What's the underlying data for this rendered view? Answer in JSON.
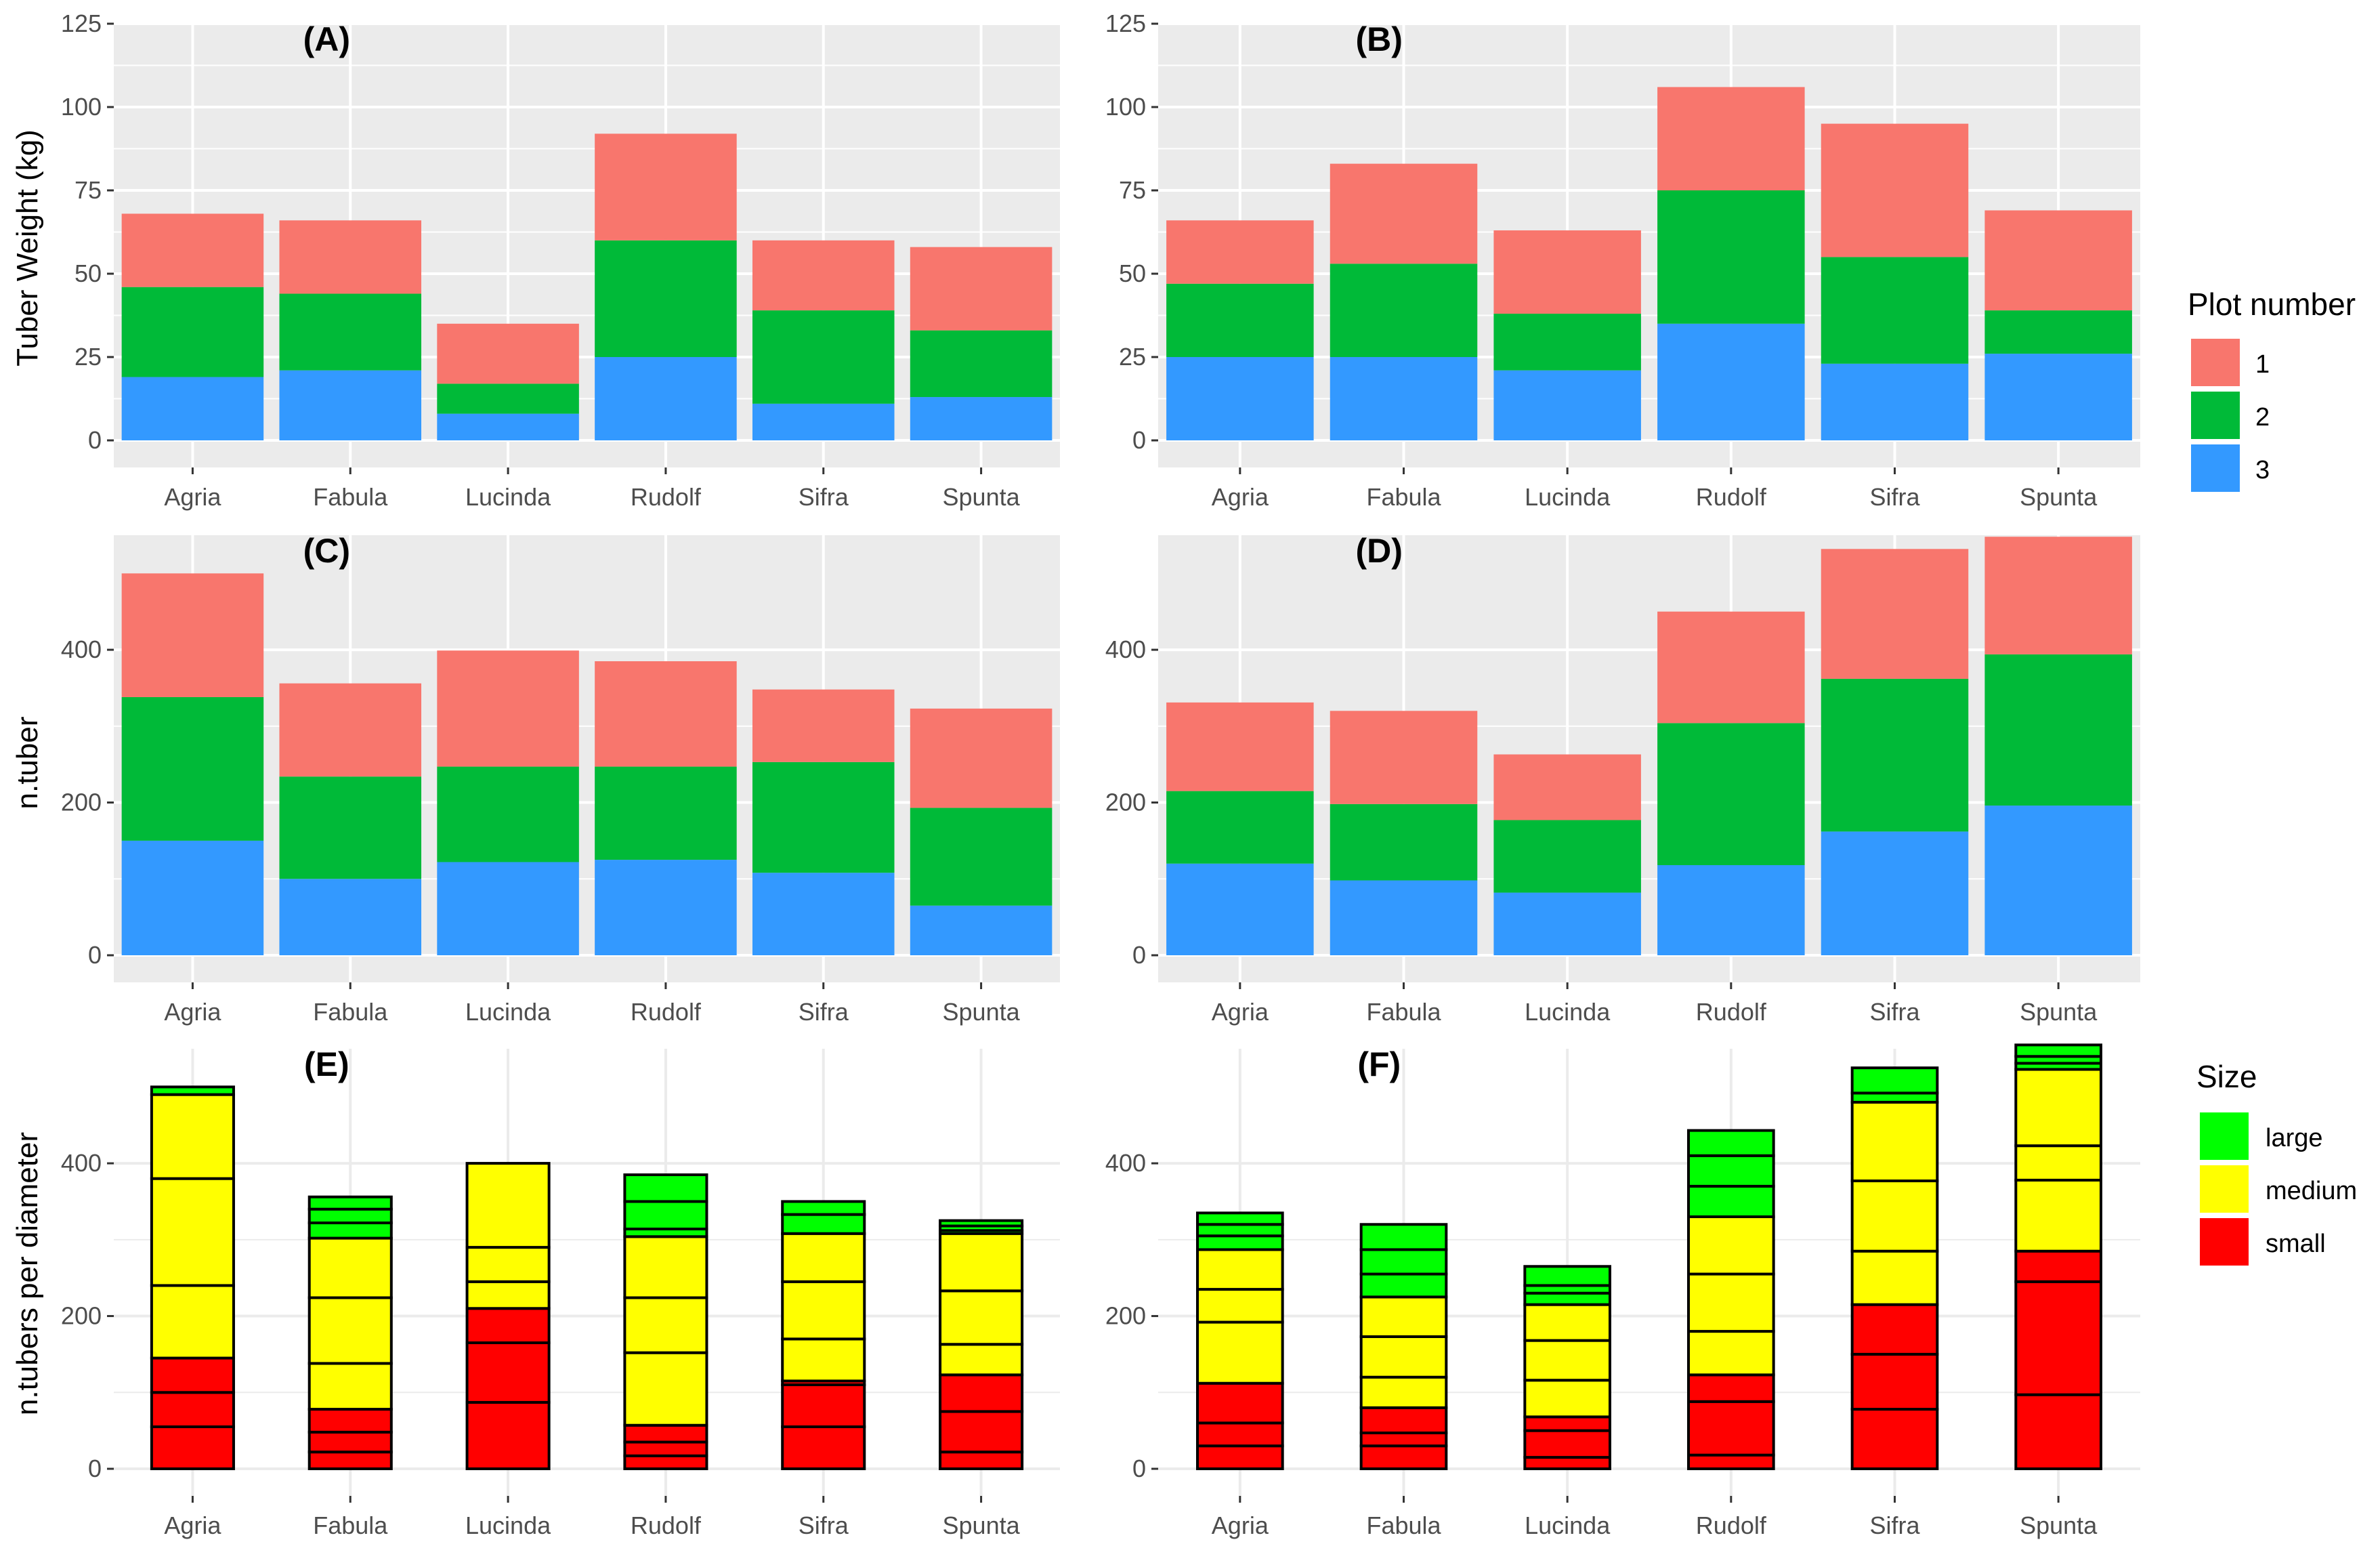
{
  "colors": {
    "panel_bg": "#EBEBEB",
    "grid": "#FFFFFF",
    "plot1": "#F8766D",
    "plot2": "#00BA38",
    "plot3": "#3399FF",
    "large": "#00FF00",
    "medium": "#FFFF00",
    "small": "#FF0000",
    "outline": "#000000"
  },
  "y_titles": {
    "row1": "Tuber Weight (kg)",
    "row2": "n.tuber",
    "row3": "n.tubers per diameter"
  },
  "legend_plot": {
    "title": "Plot number",
    "items": [
      {
        "label": "1",
        "color": "#F8766D"
      },
      {
        "label": "2",
        "color": "#00BA38"
      },
      {
        "label": "3",
        "color": "#3399FF"
      }
    ]
  },
  "legend_size": {
    "title": "Size",
    "items": [
      {
        "label": "large",
        "color": "#00FF00"
      },
      {
        "label": "medium",
        "color": "#FFFF00"
      },
      {
        "label": "small",
        "color": "#FF0000"
      }
    ]
  },
  "chart_data": [
    {
      "panel": "(A)",
      "type": "bar",
      "stacked": true,
      "categories": [
        "Agria",
        "Fabula",
        "Lucinda",
        "Rudolf",
        "Sifra",
        "Spunta"
      ],
      "ylabel": "Tuber Weight (kg)",
      "ylim": [
        0,
        125
      ],
      "yticks": [
        0,
        25,
        50,
        75,
        100,
        125
      ],
      "series": [
        {
          "name": "3",
          "values": [
            19,
            21,
            8,
            25,
            11,
            13
          ]
        },
        {
          "name": "2",
          "values": [
            27,
            23,
            9,
            35,
            28,
            20
          ]
        },
        {
          "name": "1",
          "values": [
            22,
            22,
            18,
            32,
            21,
            25
          ]
        }
      ]
    },
    {
      "panel": "(B)",
      "type": "bar",
      "stacked": true,
      "categories": [
        "Agria",
        "Fabula",
        "Lucinda",
        "Rudolf",
        "Sifra",
        "Spunta"
      ],
      "ylim": [
        0,
        125
      ],
      "yticks": [
        0,
        25,
        50,
        75,
        100,
        125
      ],
      "series": [
        {
          "name": "3",
          "values": [
            25,
            25,
            21,
            35,
            23,
            26
          ]
        },
        {
          "name": "2",
          "values": [
            22,
            28,
            17,
            40,
            32,
            13
          ]
        },
        {
          "name": "1",
          "values": [
            19,
            30,
            25,
            31,
            40,
            30
          ]
        }
      ]
    },
    {
      "panel": "(C)",
      "type": "bar",
      "stacked": true,
      "categories": [
        "Agria",
        "Fabula",
        "Lucinda",
        "Rudolf",
        "Sifra",
        "Spunta"
      ],
      "ylabel": "n.tuber",
      "ylim": [
        0,
        550
      ],
      "yticks": [
        0,
        200,
        400
      ],
      "series": [
        {
          "name": "3",
          "values": [
            150,
            100,
            122,
            125,
            108,
            65
          ]
        },
        {
          "name": "2",
          "values": [
            188,
            134,
            125,
            122,
            145,
            128
          ]
        },
        {
          "name": "1",
          "values": [
            162,
            122,
            152,
            138,
            95,
            130
          ]
        }
      ]
    },
    {
      "panel": "(D)",
      "type": "bar",
      "stacked": true,
      "categories": [
        "Agria",
        "Fabula",
        "Lucinda",
        "Rudolf",
        "Sifra",
        "Spunta"
      ],
      "ylim": [
        0,
        550
      ],
      "yticks": [
        0,
        200,
        400
      ],
      "series": [
        {
          "name": "3",
          "values": [
            120,
            98,
            82,
            118,
            162,
            196
          ]
        },
        {
          "name": "2",
          "values": [
            95,
            100,
            95,
            186,
            200,
            198
          ]
        },
        {
          "name": "1",
          "values": [
            116,
            122,
            86,
            146,
            170,
            154
          ]
        }
      ]
    },
    {
      "panel": "(E)",
      "type": "bar",
      "stacked": true,
      "categories": [
        "Agria",
        "Fabula",
        "Lucinda",
        "Rudolf",
        "Sifra",
        "Spunta"
      ],
      "ylabel": "n.tubers per diameter",
      "ylim": [
        0,
        550
      ],
      "yticks": [
        0,
        200,
        400
      ],
      "bars": [
        {
          "category": "Agria",
          "segments": [
            {
              "size": "small",
              "value": 55
            },
            {
              "size": "small",
              "value": 45
            },
            {
              "size": "small",
              "value": 45
            },
            {
              "size": "medium",
              "value": 95
            },
            {
              "size": "medium",
              "value": 140
            },
            {
              "size": "medium",
              "value": 110
            },
            {
              "size": "large",
              "value": 10
            }
          ]
        },
        {
          "category": "Fabula",
          "segments": [
            {
              "size": "small",
              "value": 22
            },
            {
              "size": "small",
              "value": 26
            },
            {
              "size": "small",
              "value": 30
            },
            {
              "size": "medium",
              "value": 60
            },
            {
              "size": "medium",
              "value": 86
            },
            {
              "size": "medium",
              "value": 78
            },
            {
              "size": "large",
              "value": 20
            },
            {
              "size": "large",
              "value": 18
            },
            {
              "size": "large",
              "value": 16
            }
          ]
        },
        {
          "category": "Lucinda",
          "segments": [
            {
              "size": "small",
              "value": 87
            },
            {
              "size": "small",
              "value": 78
            },
            {
              "size": "small",
              "value": 45
            },
            {
              "size": "medium",
              "value": 35
            },
            {
              "size": "medium",
              "value": 45
            },
            {
              "size": "medium",
              "value": 110
            }
          ]
        },
        {
          "category": "Rudolf",
          "segments": [
            {
              "size": "small",
              "value": 17
            },
            {
              "size": "small",
              "value": 18
            },
            {
              "size": "small",
              "value": 22
            },
            {
              "size": "medium",
              "value": 95
            },
            {
              "size": "medium",
              "value": 72
            },
            {
              "size": "medium",
              "value": 80
            },
            {
              "size": "large",
              "value": 10
            },
            {
              "size": "large",
              "value": 36
            },
            {
              "size": "large",
              "value": 35
            }
          ]
        },
        {
          "category": "Sifra",
          "segments": [
            {
              "size": "small",
              "value": 55
            },
            {
              "size": "small",
              "value": 55
            },
            {
              "size": "small",
              "value": 5
            },
            {
              "size": "medium",
              "value": 55
            },
            {
              "size": "medium",
              "value": 75
            },
            {
              "size": "medium",
              "value": 63
            },
            {
              "size": "large",
              "value": 25
            },
            {
              "size": "large",
              "value": 17
            }
          ]
        },
        {
          "category": "Spunta",
          "segments": [
            {
              "size": "small",
              "value": 22
            },
            {
              "size": "small",
              "value": 53
            },
            {
              "size": "small",
              "value": 48
            },
            {
              "size": "medium",
              "value": 40
            },
            {
              "size": "medium",
              "value": 70
            },
            {
              "size": "medium",
              "value": 75
            },
            {
              "size": "large",
              "value": 4
            },
            {
              "size": "large",
              "value": 6
            },
            {
              "size": "large",
              "value": 7
            }
          ]
        }
      ]
    },
    {
      "panel": "(F)",
      "type": "bar",
      "stacked": true,
      "categories": [
        "Agria",
        "Fabula",
        "Lucinda",
        "Rudolf",
        "Sifra",
        "Spunta"
      ],
      "ylim": [
        0,
        550
      ],
      "yticks": [
        0,
        200,
        400
      ],
      "bars": [
        {
          "category": "Agria",
          "segments": [
            {
              "size": "small",
              "value": 30
            },
            {
              "size": "small",
              "value": 30
            },
            {
              "size": "small",
              "value": 52
            },
            {
              "size": "medium",
              "value": 80
            },
            {
              "size": "medium",
              "value": 43
            },
            {
              "size": "medium",
              "value": 52
            },
            {
              "size": "large",
              "value": 18
            },
            {
              "size": "large",
              "value": 15
            },
            {
              "size": "large",
              "value": 15
            }
          ]
        },
        {
          "category": "Fabula",
          "segments": [
            {
              "size": "small",
              "value": 30
            },
            {
              "size": "small",
              "value": 17
            },
            {
              "size": "small",
              "value": 33
            },
            {
              "size": "medium",
              "value": 40
            },
            {
              "size": "medium",
              "value": 53
            },
            {
              "size": "medium",
              "value": 52
            },
            {
              "size": "large",
              "value": 30
            },
            {
              "size": "large",
              "value": 32
            },
            {
              "size": "large",
              "value": 33
            }
          ]
        },
        {
          "category": "Lucinda",
          "segments": [
            {
              "size": "small",
              "value": 15
            },
            {
              "size": "small",
              "value": 35
            },
            {
              "size": "small",
              "value": 18
            },
            {
              "size": "medium",
              "value": 48
            },
            {
              "size": "medium",
              "value": 52
            },
            {
              "size": "medium",
              "value": 47
            },
            {
              "size": "large",
              "value": 15
            },
            {
              "size": "large",
              "value": 10
            },
            {
              "size": "large",
              "value": 25
            }
          ]
        },
        {
          "category": "Rudolf",
          "segments": [
            {
              "size": "small",
              "value": 18
            },
            {
              "size": "small",
              "value": 70
            },
            {
              "size": "small",
              "value": 35
            },
            {
              "size": "medium",
              "value": 57
            },
            {
              "size": "medium",
              "value": 75
            },
            {
              "size": "medium",
              "value": 75
            },
            {
              "size": "large",
              "value": 40
            },
            {
              "size": "large",
              "value": 40
            },
            {
              "size": "large",
              "value": 33
            }
          ]
        },
        {
          "category": "Sifra",
          "segments": [
            {
              "size": "small",
              "value": 78
            },
            {
              "size": "small",
              "value": 72
            },
            {
              "size": "small",
              "value": 65
            },
            {
              "size": "medium",
              "value": 70
            },
            {
              "size": "medium",
              "value": 92
            },
            {
              "size": "medium",
              "value": 103
            },
            {
              "size": "large",
              "value": 12
            },
            {
              "size": "large",
              "value": 33
            }
          ]
        },
        {
          "category": "Spunta",
          "segments": [
            {
              "size": "small",
              "value": 97
            },
            {
              "size": "small",
              "value": 148
            },
            {
              "size": "small",
              "value": 40
            },
            {
              "size": "medium",
              "value": 93
            },
            {
              "size": "medium",
              "value": 45
            },
            {
              "size": "medium",
              "value": 100
            },
            {
              "size": "large",
              "value": 8
            },
            {
              "size": "large",
              "value": 9
            },
            {
              "size": "large",
              "value": 15
            }
          ]
        }
      ]
    }
  ]
}
